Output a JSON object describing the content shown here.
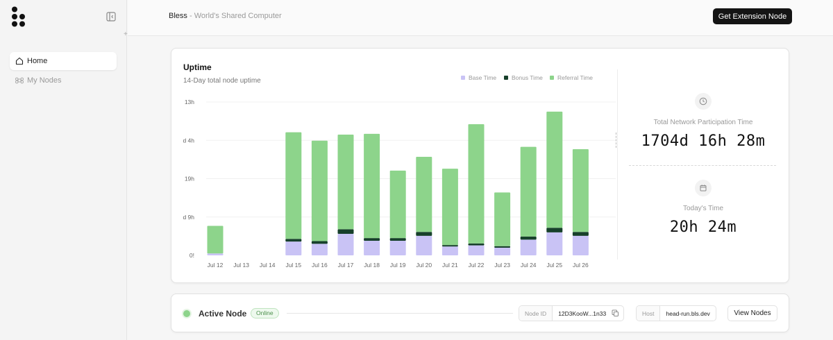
{
  "sidebar": {
    "items": [
      {
        "label": "Home",
        "icon": "home-icon",
        "active": true
      },
      {
        "label": "My Nodes",
        "icon": "command-icon",
        "active": false
      }
    ]
  },
  "header": {
    "brand": "Bless",
    "separator": " - ",
    "tagline": "World's Shared Computer",
    "cta_label": "Get Extension Node"
  },
  "uptime": {
    "title": "Uptime",
    "subtitle": "14-Day total node uptime",
    "total_label": "Total Network Participation Time",
    "total_value": "1704d 16h 28m",
    "today_label": "Today's Time",
    "today_value": "20h 24m"
  },
  "chart_data": {
    "type": "bar",
    "stacked": true,
    "categories": [
      "Jul 12",
      "Jul 13",
      "Jul 14",
      "Jul 15",
      "Jul 16",
      "Jul 17",
      "Jul 18",
      "Jul 19",
      "Jul 20",
      "Jul 21",
      "Jul 22",
      "Jul 23",
      "Jul 24",
      "Jul 25",
      "Jul 26"
    ],
    "y_ticks": [
      "0!",
      "d 9h",
      "19h",
      "d 4h",
      "13h"
    ],
    "y_tick_values": [
      0,
      1,
      2,
      3,
      4
    ],
    "ylim": [
      0,
      4
    ],
    "grid": true,
    "legend_position": "top-right",
    "series": [
      {
        "name": "Base Time",
        "color": "#c9c3f5",
        "values": [
          0.05,
          0,
          0,
          0.36,
          0.3,
          0.56,
          0.38,
          0.38,
          0.51,
          0.23,
          0.26,
          0.2,
          0.41,
          0.6,
          0.51
        ]
      },
      {
        "name": "Bonus Time",
        "color": "#17402b",
        "values": [
          0,
          0,
          0,
          0.07,
          0.07,
          0.12,
          0.07,
          0.07,
          0.1,
          0.04,
          0.05,
          0.04,
          0.08,
          0.12,
          0.1
        ]
      },
      {
        "name": "Referral Time",
        "color": "#8dd48b",
        "values": [
          0.72,
          0,
          0,
          2.78,
          2.62,
          2.47,
          2.72,
          1.76,
          1.96,
          1.99,
          3.11,
          1.4,
          2.34,
          3.03,
          2.16
        ]
      }
    ]
  },
  "node": {
    "title": "Active Node",
    "status": "Online",
    "id_label": "Node ID",
    "id_value": "12D3KooW...1n33",
    "host_label": "Host",
    "host_value": "head-run.bls.dev",
    "view_label": "View Nodes"
  },
  "colors": {
    "accent": "#141414",
    "online": "#8dd48b"
  }
}
